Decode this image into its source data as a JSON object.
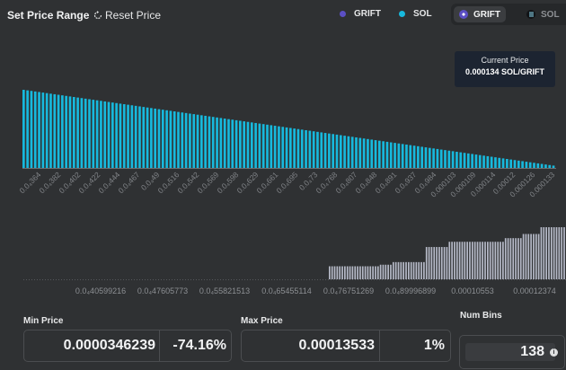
{
  "header": {
    "title": "Set Price Range",
    "reset_label": "Reset Price"
  },
  "legend": [
    {
      "label": "GRIFT",
      "color": "#5b4fc4"
    },
    {
      "label": "SOL",
      "color": "#17b9dd"
    }
  ],
  "toggle": {
    "options": [
      "GRIFT",
      "SOL"
    ],
    "selected": "GRIFT"
  },
  "tooltip": {
    "title": "Current Price",
    "value": "0.000134 SOL/GRIFT"
  },
  "inputs": {
    "min_price": {
      "label": "Min Price",
      "value": "0.0000346239",
      "percent": "-74.16%"
    },
    "max_price": {
      "label": "Max Price",
      "value": "0.00013533",
      "percent": "1%"
    },
    "num_bins": {
      "label": "Num Bins",
      "value": "138"
    }
  },
  "chart_data": [
    {
      "type": "bar",
      "title": "",
      "xlabel": "",
      "ylabel": "",
      "tick_labels": [
        "0.0₄364",
        "0.0₄382",
        "0.0₄402",
        "0.0₄422",
        "0.0₄444",
        "0.0₄467",
        "0.0₄49",
        "0.0₄516",
        "0.0₄542",
        "0.0₄569",
        "0.0₄598",
        "0.0₄629",
        "0.0₄661",
        "0.0₄695",
        "0.0₄73",
        "0.0₄768",
        "0.0₄807",
        "0.0₄848",
        "0.0₄891",
        "0.0₄937",
        "0.0₄984",
        "0.000103",
        "0.000109",
        "0.000114",
        "0.00012",
        "0.000126",
        "0.000133"
      ],
      "bar_count": 138,
      "relative_heights": {
        "start": 1.0,
        "end": 0.03
      },
      "color": "#17b9dd"
    },
    {
      "type": "bar",
      "title": "",
      "xlabel": "",
      "ylabel": "",
      "tick_labels": [
        "0.0₄40599216",
        "0.0₄47605773",
        "0.0₄55821513",
        "0.0₄65455114",
        "0.0₄76751269",
        "0.0₄89996899",
        "0.00010553",
        "0.00012374"
      ],
      "segments": [
        {
          "relative_height": 0.25,
          "bars": 20
        },
        {
          "relative_height": 0.28,
          "bars": 5
        },
        {
          "relative_height": 0.33,
          "bars": 13
        },
        {
          "relative_height": 0.62,
          "bars": 9
        },
        {
          "relative_height": 0.72,
          "bars": 22
        },
        {
          "relative_height": 0.79,
          "bars": 7
        },
        {
          "relative_height": 0.87,
          "bars": 7
        },
        {
          "relative_height": 1.0,
          "bars": 10
        }
      ],
      "color": "#b6bac8"
    }
  ]
}
